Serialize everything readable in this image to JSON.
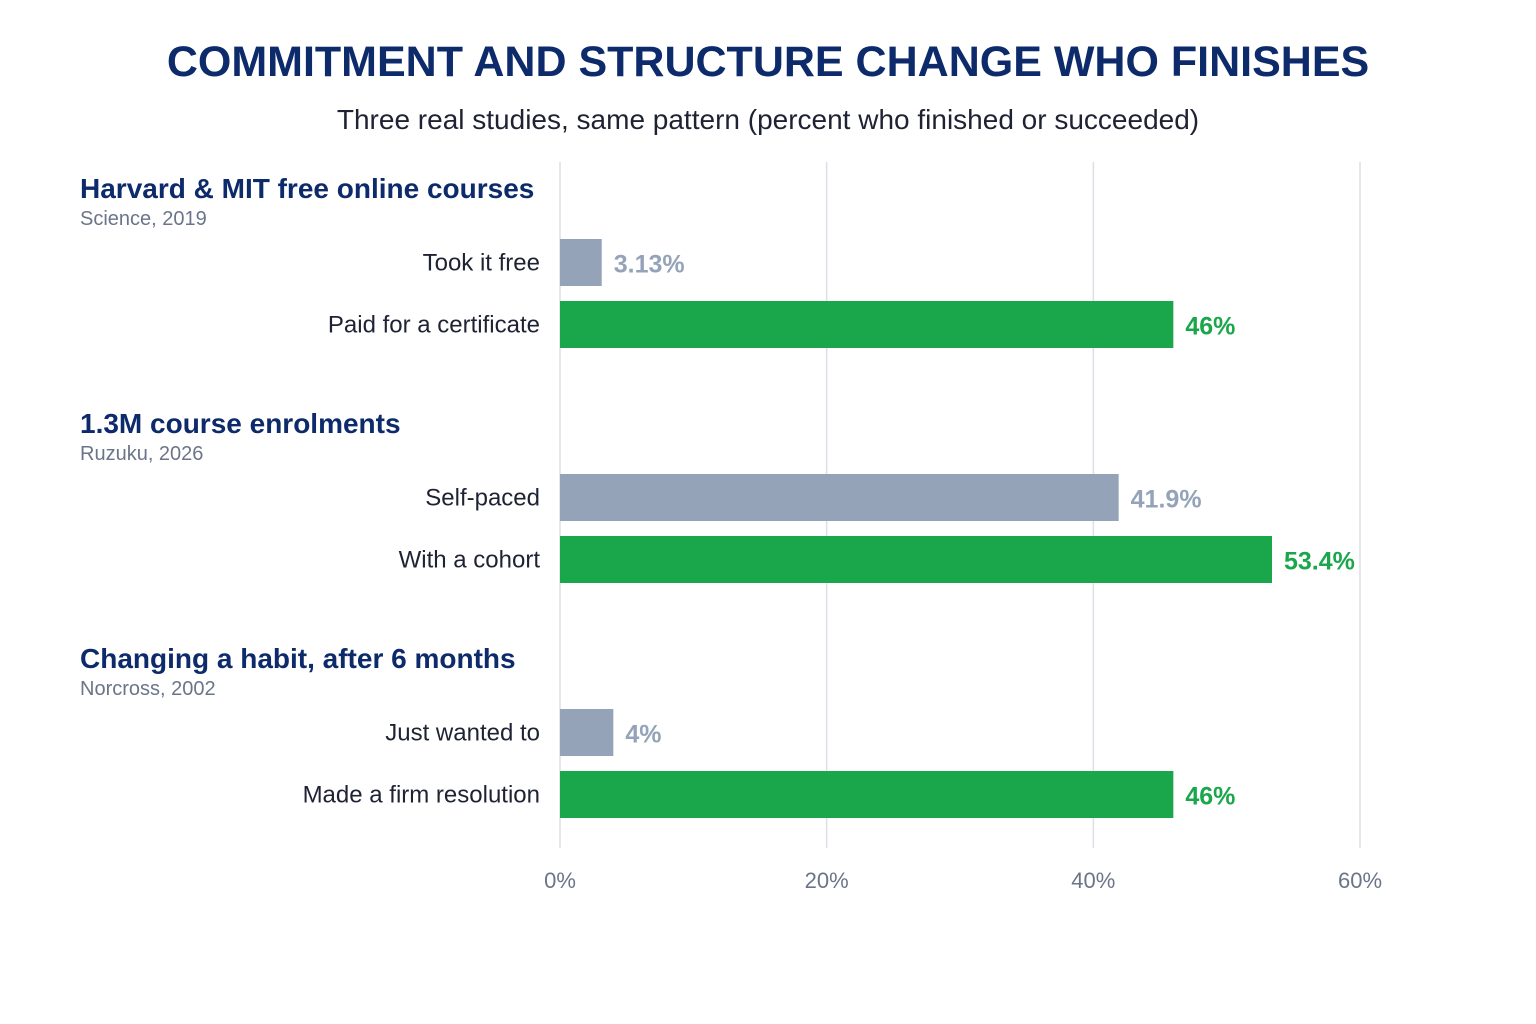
{
  "title": "COMMITMENT AND STRUCTURE CHANGE WHO FINISHES",
  "subtitle": "Three real studies, same pattern (percent who finished or succeeded)",
  "colors": {
    "baseline": "#95a3b9",
    "committed": "#1aa64a",
    "title": "#0d2a6b",
    "grid": "#dcdfe8"
  },
  "chart_data": {
    "type": "bar",
    "orientation": "horizontal",
    "xlim": [
      0,
      60
    ],
    "ticks": [
      0,
      20,
      40,
      60
    ],
    "tick_labels": [
      "0%",
      "20%",
      "40%",
      "60%"
    ],
    "grid": true,
    "groups": [
      {
        "title": "Harvard & MIT free online courses",
        "source": "Science, 2019",
        "bars": [
          {
            "label": "Took it free",
            "value": 3.13,
            "value_label": "3.13%",
            "kind": "baseline"
          },
          {
            "label": "Paid for a certificate",
            "value": 46,
            "value_label": "46%",
            "kind": "committed"
          }
        ]
      },
      {
        "title": "1.3M course enrolments",
        "source": "Ruzuku, 2026",
        "bars": [
          {
            "label": "Self-paced",
            "value": 41.9,
            "value_label": "41.9%",
            "kind": "baseline"
          },
          {
            "label": "With a cohort",
            "value": 53.4,
            "value_label": "53.4%",
            "kind": "committed"
          }
        ]
      },
      {
        "title": "Changing a habit, after 6 months",
        "source": "Norcross, 2002",
        "bars": [
          {
            "label": "Just wanted to",
            "value": 4,
            "value_label": "4%",
            "kind": "baseline"
          },
          {
            "label": "Made a firm resolution",
            "value": 46,
            "value_label": "46%",
            "kind": "committed"
          }
        ]
      }
    ]
  }
}
